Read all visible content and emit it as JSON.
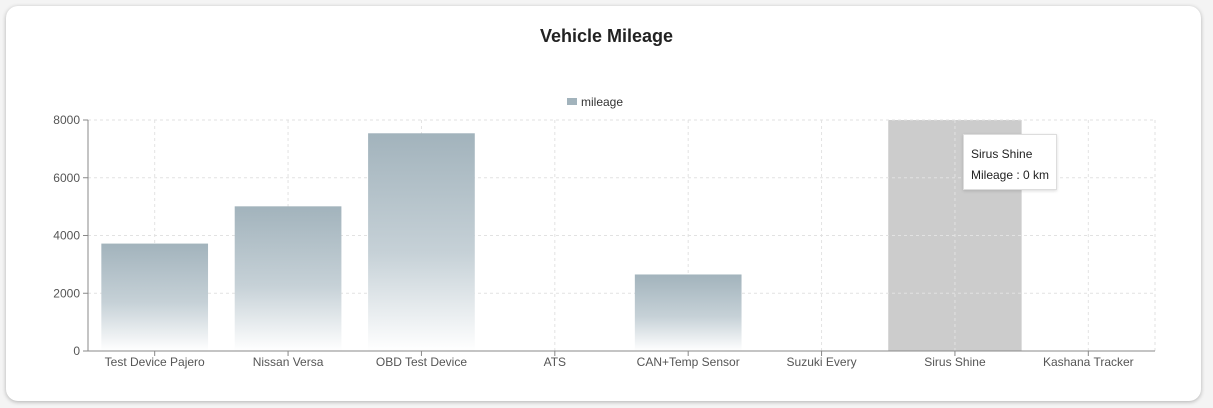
{
  "tooltip": {
    "title": "Sirus Shine",
    "label": "Mileage",
    "value_text": "0 km"
  },
  "colors": {
    "bar_gradient_top": "#a2b3bc",
    "bar_gradient_bottom": "#ffffff",
    "hover_band": "#cccccc",
    "grid": "#e2e2e2",
    "axis": "#888888",
    "legend_swatch": "#a2b3bc"
  },
  "chart_data": {
    "type": "bar",
    "title": "Vehicle Mileage",
    "categories": [
      "Test Device Pajero",
      "Nissan Versa",
      "OBD Test Device",
      "ATS",
      "CAN+Temp Sensor",
      "Suzuki Every",
      "Sirus Shine",
      "Kashana Tracker"
    ],
    "series": [
      {
        "name": "mileage",
        "values": [
          3720,
          5010,
          7540,
          0,
          2650,
          0,
          0,
          0
        ]
      }
    ],
    "y_ticks": [
      0,
      2000,
      4000,
      6000,
      8000
    ],
    "ylim": [
      0,
      8000
    ],
    "grid": true,
    "legend_position": "top-center",
    "highlighted_category": "Sirus Shine"
  }
}
